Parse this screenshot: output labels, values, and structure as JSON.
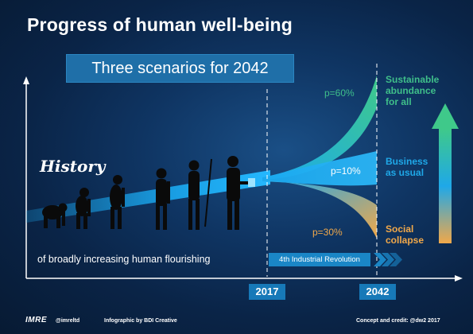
{
  "title": "Progress of human well-being",
  "subtitle": "Three scenarios for 2042",
  "history_label": "History",
  "history_tagline": "of broadly increasing human flourishing",
  "industrial_revolution_label": "4th Industrial Revolution",
  "years": [
    "2017",
    "2042"
  ],
  "scenarios": [
    {
      "name": "Sustainable abundance for all",
      "lines": [
        "Sustainable",
        "abundance",
        "for all"
      ],
      "probability": "p=60%",
      "color": "#3fbf8a"
    },
    {
      "name": "Business as usual",
      "lines": [
        "Business",
        "as usual"
      ],
      "probability": "p=10%",
      "color": "#1fa8e8"
    },
    {
      "name": "Social collapse",
      "lines": [
        "Social",
        "collapse"
      ],
      "probability": "p=30%",
      "color": "#f0a84a"
    }
  ],
  "footer": {
    "logo": "IMRE",
    "handle": "@imreltd",
    "infographic_credit": "Infographic by BDI Creative",
    "concept_credit": "Concept and credit: @dw2 2017"
  },
  "colors": {
    "background": "#0f3563",
    "band": "#1aa9f0",
    "accent_box": "#1f6fa8",
    "green": "#3fbf8a",
    "orange": "#f0a84a"
  },
  "icons": [
    "human-evolution-silhouettes",
    "up-arrow-icon",
    "chevron-arrows-icon"
  ]
}
